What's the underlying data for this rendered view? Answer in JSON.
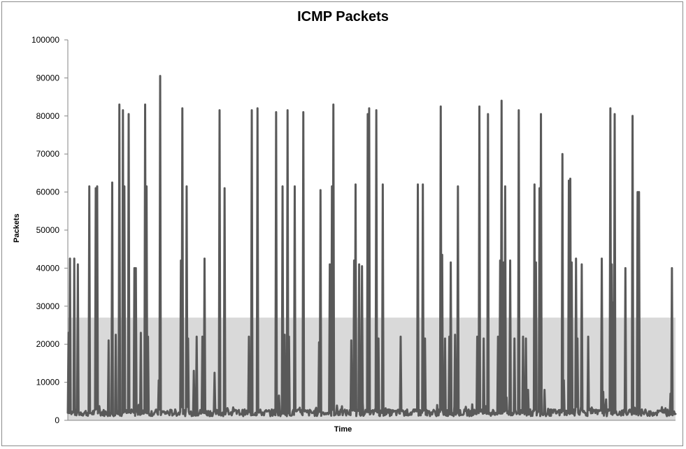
{
  "chart_data": {
    "type": "line",
    "title": "ICMP Packets",
    "xlabel": "Time",
    "ylabel": "Packets",
    "ylim": [
      0,
      100000
    ],
    "y_ticks": [
      0,
      10000,
      20000,
      30000,
      40000,
      50000,
      60000,
      70000,
      80000,
      90000,
      100000
    ],
    "y_tick_labels": [
      "0",
      "10000",
      "20000",
      "30000",
      "40000",
      "50000",
      "60000",
      "70000",
      "80000",
      "90000",
      "100000"
    ],
    "x_tick_labels": [],
    "grid": false,
    "legend": "none",
    "band": {
      "from": 0,
      "to": 27000,
      "color": "#d9d9d9"
    },
    "line_color": "#595959",
    "baseline": 2000,
    "sample_count": 850,
    "spikes": [
      {
        "i": 1,
        "v": 23000
      },
      {
        "i": 3,
        "v": 42500
      },
      {
        "i": 9,
        "v": 42500
      },
      {
        "i": 14,
        "v": 41000
      },
      {
        "i": 30,
        "v": 61500
      },
      {
        "i": 39,
        "v": 61000
      },
      {
        "i": 41,
        "v": 61500
      },
      {
        "i": 57,
        "v": 21000
      },
      {
        "i": 62,
        "v": 62500
      },
      {
        "i": 67,
        "v": 22500
      },
      {
        "i": 72,
        "v": 83000
      },
      {
        "i": 77,
        "v": 81500
      },
      {
        "i": 79,
        "v": 61500
      },
      {
        "i": 85,
        "v": 80500
      },
      {
        "i": 93,
        "v": 40000
      },
      {
        "i": 95,
        "v": 40000
      },
      {
        "i": 102,
        "v": 23000
      },
      {
        "i": 108,
        "v": 83000
      },
      {
        "i": 110,
        "v": 61500
      },
      {
        "i": 112,
        "v": 22000
      },
      {
        "i": 127,
        "v": 10500
      },
      {
        "i": 129,
        "v": 90500
      },
      {
        "i": 158,
        "v": 42000
      },
      {
        "i": 160,
        "v": 82000
      },
      {
        "i": 166,
        "v": 61500
      },
      {
        "i": 168,
        "v": 21500
      },
      {
        "i": 176,
        "v": 13000
      },
      {
        "i": 180,
        "v": 22000
      },
      {
        "i": 188,
        "v": 22000
      },
      {
        "i": 191,
        "v": 42500
      },
      {
        "i": 205,
        "v": 12500
      },
      {
        "i": 212,
        "v": 81500
      },
      {
        "i": 219,
        "v": 61000
      },
      {
        "i": 253,
        "v": 22000
      },
      {
        "i": 257,
        "v": 81500
      },
      {
        "i": 265,
        "v": 82000
      },
      {
        "i": 291,
        "v": 81000
      },
      {
        "i": 295,
        "v": 6500
      },
      {
        "i": 300,
        "v": 61500
      },
      {
        "i": 303,
        "v": 22500
      },
      {
        "i": 307,
        "v": 81500
      },
      {
        "i": 309,
        "v": 22000
      },
      {
        "i": 317,
        "v": 61500
      },
      {
        "i": 329,
        "v": 81000
      },
      {
        "i": 351,
        "v": 20500
      },
      {
        "i": 353,
        "v": 60500
      },
      {
        "i": 366,
        "v": 41000
      },
      {
        "i": 369,
        "v": 61500
      },
      {
        "i": 371,
        "v": 83000
      },
      {
        "i": 396,
        "v": 21000
      },
      {
        "i": 400,
        "v": 42000
      },
      {
        "i": 402,
        "v": 62000
      },
      {
        "i": 407,
        "v": 41000
      },
      {
        "i": 411,
        "v": 40500
      },
      {
        "i": 419,
        "v": 80500
      },
      {
        "i": 421,
        "v": 82000
      },
      {
        "i": 431,
        "v": 81500
      },
      {
        "i": 434,
        "v": 21500
      },
      {
        "i": 440,
        "v": 62000
      },
      {
        "i": 465,
        "v": 22000
      },
      {
        "i": 489,
        "v": 62000
      },
      {
        "i": 496,
        "v": 62000
      },
      {
        "i": 499,
        "v": 21500
      },
      {
        "i": 521,
        "v": 82500
      },
      {
        "i": 523,
        "v": 43500
      },
      {
        "i": 527,
        "v": 21500
      },
      {
        "i": 533,
        "v": 22000
      },
      {
        "i": 535,
        "v": 41500
      },
      {
        "i": 541,
        "v": 22500
      },
      {
        "i": 545,
        "v": 61500
      },
      {
        "i": 572,
        "v": 22000
      },
      {
        "i": 575,
        "v": 82500
      },
      {
        "i": 581,
        "v": 21500
      },
      {
        "i": 587,
        "v": 80500
      },
      {
        "i": 601,
        "v": 22000
      },
      {
        "i": 604,
        "v": 42000
      },
      {
        "i": 606,
        "v": 84000
      },
      {
        "i": 609,
        "v": 41500
      },
      {
        "i": 611,
        "v": 61500
      },
      {
        "i": 613,
        "v": 6000
      },
      {
        "i": 618,
        "v": 42000
      },
      {
        "i": 624,
        "v": 21500
      },
      {
        "i": 630,
        "v": 81500
      },
      {
        "i": 636,
        "v": 22000
      },
      {
        "i": 640,
        "v": 21500
      },
      {
        "i": 643,
        "v": 8000
      },
      {
        "i": 652,
        "v": 62000
      },
      {
        "i": 654,
        "v": 41500
      },
      {
        "i": 659,
        "v": 61000
      },
      {
        "i": 661,
        "v": 80500
      },
      {
        "i": 666,
        "v": 8000
      },
      {
        "i": 691,
        "v": 70000
      },
      {
        "i": 693,
        "v": 10500
      },
      {
        "i": 700,
        "v": 63000
      },
      {
        "i": 702,
        "v": 63500
      },
      {
        "i": 704,
        "v": 41500
      },
      {
        "i": 710,
        "v": 42500
      },
      {
        "i": 712,
        "v": 21500
      },
      {
        "i": 718,
        "v": 41000
      },
      {
        "i": 727,
        "v": 22000
      },
      {
        "i": 746,
        "v": 42500
      },
      {
        "i": 748,
        "v": 7500
      },
      {
        "i": 752,
        "v": 5500
      },
      {
        "i": 758,
        "v": 82000
      },
      {
        "i": 760,
        "v": 41000
      },
      {
        "i": 762,
        "v": 31000
      },
      {
        "i": 764,
        "v": 80500
      },
      {
        "i": 779,
        "v": 40000
      },
      {
        "i": 789,
        "v": 80000
      },
      {
        "i": 796,
        "v": 60000
      },
      {
        "i": 798,
        "v": 60000
      },
      {
        "i": 842,
        "v": 7000
      },
      {
        "i": 844,
        "v": 40000
      }
    ]
  }
}
